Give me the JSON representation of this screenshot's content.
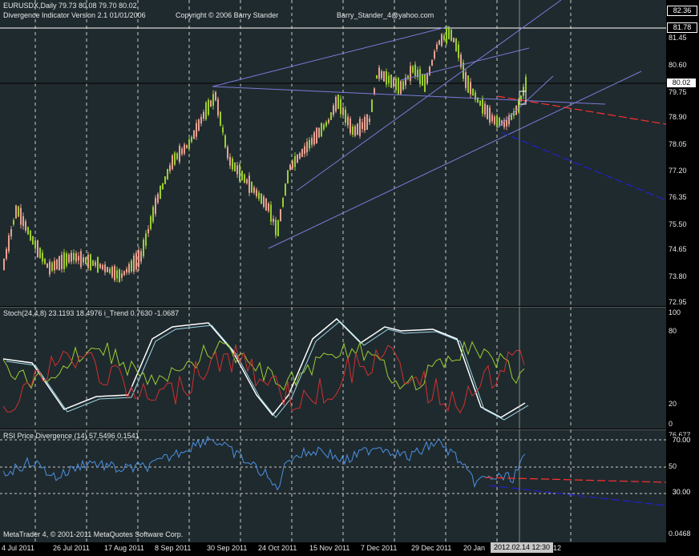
{
  "main": {
    "symbol_line": "EURUSDX,Daily  79.73 80.08 79.70 80.02",
    "indicator_line": "Divergence Indicator Version 2.1  01/01/2006",
    "copyright": "Copyright © 2006 Barry Stander",
    "email": "Barry_Stander_4@yahoo.com",
    "price_ticks": [
      "82.36",
      "81.78",
      "81.45",
      "80.60",
      "80.02",
      "79.75",
      "78.90",
      "78.05",
      "77.20",
      "76.35",
      "75.50",
      "74.65",
      "73.80",
      "72.95"
    ],
    "price_highlight": {
      "top": "82.36",
      "mid": "81.78",
      "current": "80.02"
    }
  },
  "stoch": {
    "title": "Stoch(24,4,8) 23.1193 18.4976  i_Trend 0.7630 -1.0687",
    "ticks": [
      "100",
      "80",
      "20",
      "0"
    ]
  },
  "rsi": {
    "title": "RSI Price Divergence (14) 57.5496 0.1541",
    "ticks": [
      "76.677",
      "70.00",
      "50",
      "30.00",
      "0.0468"
    ],
    "footer": "MetaTrader 4, © 2001-2011 MetaQuotes Software Corp."
  },
  "xaxis": {
    "labels": [
      "4 Jul 2011",
      "26 Jul 2011",
      "17 Aug 2011",
      "8 Sep 2011",
      "30 Sep 2011",
      "24 Oct 2011",
      "15 Nov 2011",
      "7 Dec 2011",
      "29 Dec 2011",
      "20 Jan",
      "12"
    ],
    "cursor_label": "2012.02.14 12:30"
  },
  "colors": {
    "bg": "#1f2a2e",
    "bull": "#9acd32",
    "bear": "#e8a090",
    "trend": "#7b7bd8",
    "red": "#ff3030",
    "blue": "#2020d0",
    "stoch_main": "#ffffff",
    "stoch_signal": "#9acd32",
    "trend_red": "#d03030",
    "rsi": "#4a90e2"
  }
}
